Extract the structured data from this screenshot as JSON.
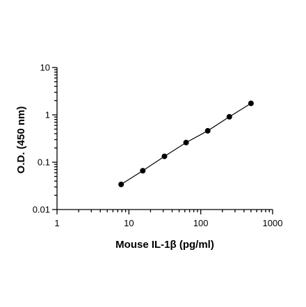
{
  "chart_data": {
    "type": "scatter",
    "title": "",
    "xlabel": "Mouse IL-1β (pg/ml)",
    "ylabel": "O.D. (450 nm)",
    "xscale": "log",
    "yscale": "log",
    "xlim": [
      1,
      1000
    ],
    "ylim": [
      0.01,
      10
    ],
    "x_ticks": [
      {
        "value": 1,
        "label": "1"
      },
      {
        "value": 10,
        "label": "10"
      },
      {
        "value": 100,
        "label": "100"
      },
      {
        "value": 1000,
        "label": "1000"
      }
    ],
    "y_ticks": [
      {
        "value": 0.01,
        "label": "0.01"
      },
      {
        "value": 0.1,
        "label": "0.1"
      },
      {
        "value": 1,
        "label": "1"
      },
      {
        "value": 10,
        "label": "10"
      }
    ],
    "grid": false,
    "legend": "none",
    "series": [
      {
        "x": [
          7.8,
          15.6,
          31.25,
          62.5,
          125,
          250,
          500
        ],
        "y": [
          0.034,
          0.066,
          0.133,
          0.26,
          0.46,
          0.91,
          1.75
        ],
        "marker": "circle",
        "fit_line": true,
        "color": "#000000"
      }
    ]
  }
}
